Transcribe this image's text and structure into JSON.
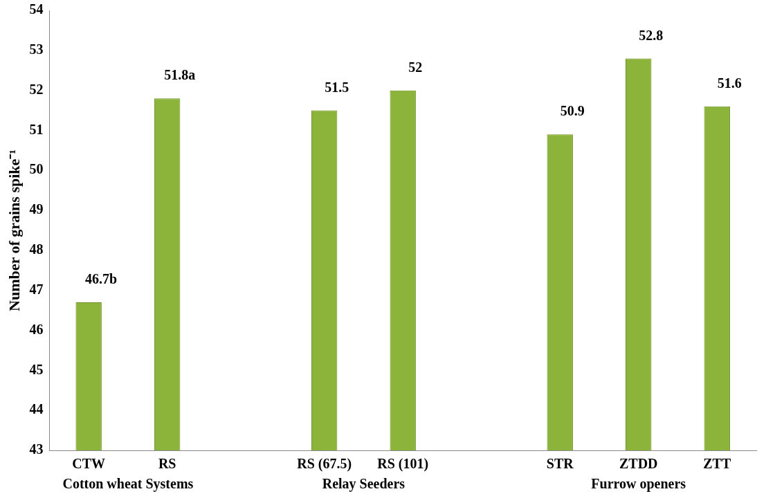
{
  "chart_data": {
    "type": "bar",
    "ylabel": "Number of grains spike⁻¹",
    "categories": [
      "CTW",
      "RS",
      null,
      "RS (67.5)",
      "RS (101)",
      null,
      "STR",
      "ZTDD",
      "ZTT"
    ],
    "values": [
      46.7,
      51.8,
      null,
      51.5,
      52,
      null,
      50.9,
      52.8,
      51.6
    ],
    "value_labels": [
      "46.7b",
      "51.8a",
      null,
      "51.5",
      "52",
      null,
      "50.9",
      "52.8",
      "51.6"
    ],
    "color": "#8db43a",
    "ylim": [
      43,
      54
    ],
    "yticks": [
      43,
      44,
      45,
      46,
      47,
      48,
      49,
      50,
      51,
      52,
      53,
      54
    ],
    "grid": false,
    "legend": false,
    "annotations": [
      "Cotton wheat Systems",
      "Relay Seeders",
      "Furrow openers"
    ]
  }
}
